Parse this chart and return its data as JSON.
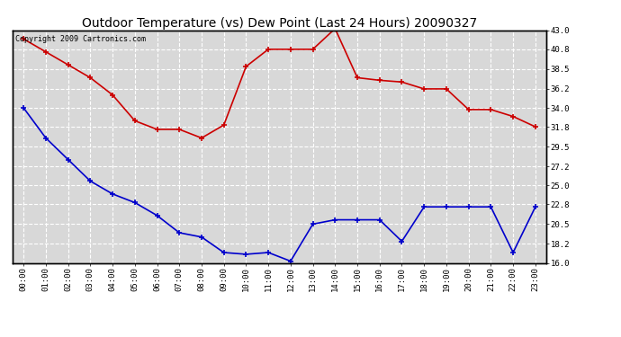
{
  "title": "Outdoor Temperature (vs) Dew Point (Last 24 Hours) 20090327",
  "copyright": "Copyright 2009 Cartronics.com",
  "hours": [
    "00:00",
    "01:00",
    "02:00",
    "03:00",
    "04:00",
    "05:00",
    "06:00",
    "07:00",
    "08:00",
    "09:00",
    "10:00",
    "11:00",
    "12:00",
    "13:00",
    "14:00",
    "15:00",
    "16:00",
    "17:00",
    "18:00",
    "19:00",
    "20:00",
    "21:00",
    "22:00",
    "23:00"
  ],
  "temp": [
    42.0,
    40.5,
    39.0,
    37.5,
    35.5,
    32.5,
    31.5,
    31.5,
    30.5,
    32.0,
    38.8,
    40.8,
    40.8,
    40.8,
    43.2,
    37.5,
    37.2,
    37.0,
    36.2,
    36.2,
    33.8,
    33.8,
    33.0,
    31.8
  ],
  "dew": [
    34.0,
    30.5,
    28.0,
    25.5,
    24.0,
    23.0,
    21.5,
    19.5,
    19.0,
    17.2,
    17.0,
    17.2,
    16.2,
    20.5,
    21.0,
    21.0,
    21.0,
    18.5,
    22.5,
    22.5,
    22.5,
    22.5,
    17.2,
    22.5
  ],
  "temp_color": "#cc0000",
  "dew_color": "#0000cc",
  "bg_color": "#ffffff",
  "plot_bg": "#d8d8d8",
  "grid_color": "#ffffff",
  "ylim": [
    16.0,
    43.0
  ],
  "yticks": [
    16.0,
    18.2,
    20.5,
    22.8,
    25.0,
    27.2,
    29.5,
    31.8,
    34.0,
    36.2,
    38.5,
    40.8,
    43.0
  ],
  "title_fontsize": 10,
  "copyright_fontsize": 6,
  "tick_fontsize": 6.5
}
